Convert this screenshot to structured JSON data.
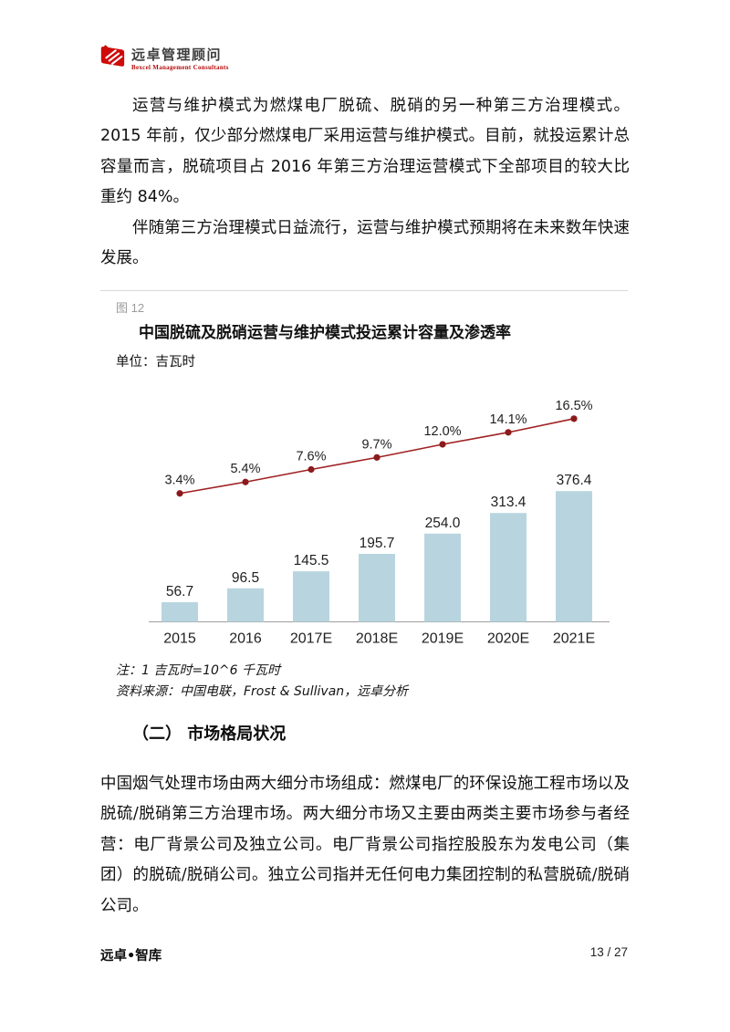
{
  "header": {
    "logo_cn": "远卓管理顾问",
    "logo_en": "Bexcel Management Consultants",
    "logo_color": "#cf0a0a"
  },
  "paragraphs": {
    "p1": "运营与维护模式为燃煤电厂脱硫、脱硝的另一种第三方治理模式。2015 年前，仅少部分燃煤电厂采用运营与维护模式。目前，就投运累计总容量而言，脱硫项目占 2016 年第三方治理运营模式下全部项目的较大比重约 84%。",
    "p2": "伴随第三方治理模式日益流行，运营与维护模式预期将在未来数年快速发展。",
    "p3": "中国烟气处理市场由两大细分市场组成：燃煤电厂的环保设施工程市场以及脱硫/脱硝第三方治理市场。两大细分市场又主要由两类主要市场参与者经营：电厂背景公司及独立公司。电厂背景公司指控股股东为发电公司（集团）的脱硫/脱硝公司。独立公司指并无任何电力集团控制的私营脱硫/脱硝公司。"
  },
  "figure": {
    "label": "图 12",
    "title": "中国脱硫及脱硝运营与维护模式投运累计容量及渗透率",
    "unit": "单位：吉瓦时",
    "note": "注：1 吉瓦时=10^6 千瓦时",
    "source": "资料来源：中国电联，Frost & Sullivan，远卓分析"
  },
  "section": {
    "heading": "（二）  市场格局状况"
  },
  "footer": {
    "brand": "远卓•智库",
    "page": "13 / 27"
  },
  "chart_data": {
    "type": "bar",
    "subtype": "bar+line-dual-axis",
    "title": "中国脱硫及脱硝运营与维护模式投运累计容量及渗透率",
    "xlabel": "",
    "ylabel": "吉瓦时",
    "categories": [
      "2015",
      "2016",
      "2017E",
      "2018E",
      "2019E",
      "2020E",
      "2021E"
    ],
    "series": [
      {
        "name": "投运累计容量（吉瓦时）",
        "type": "bar",
        "values": [
          56.7,
          96.5,
          145.5,
          195.7,
          254.0,
          313.4,
          376.4
        ],
        "labels": [
          "56.7",
          "96.5",
          "145.5",
          "195.7",
          "254.0",
          "313.4",
          "376.4"
        ]
      },
      {
        "name": "渗透率",
        "type": "line",
        "unit": "%",
        "values": [
          3.4,
          5.4,
          7.6,
          9.7,
          12.0,
          14.1,
          16.5
        ],
        "labels": [
          "3.4%",
          "5.4%",
          "7.6%",
          "9.7%",
          "12.0%",
          "14.1%",
          "16.5%"
        ]
      }
    ],
    "grid": false,
    "legend": "none",
    "colors": {
      "bar": "#b8d5df",
      "line": "#a02123",
      "marker": "#8c1a1a",
      "axis": "#9e9e9e",
      "text": "#1f1f1f"
    }
  }
}
